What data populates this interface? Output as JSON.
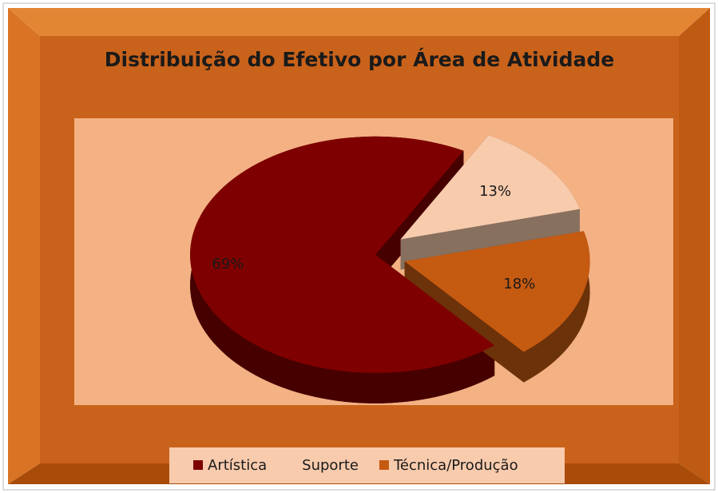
{
  "chart_data": {
    "type": "pie3d",
    "title": "Distribuição do Efetivo por Área de Atividade",
    "categories": [
      "Artística",
      "Suporte",
      "Técnica/Produção"
    ],
    "values": [
      69,
      13,
      18
    ],
    "value_labels": [
      "69%",
      "13%",
      "18%"
    ],
    "colors": [
      "#7f0000",
      "#f8cbad",
      "#c55a11"
    ],
    "legend": "bottom"
  }
}
